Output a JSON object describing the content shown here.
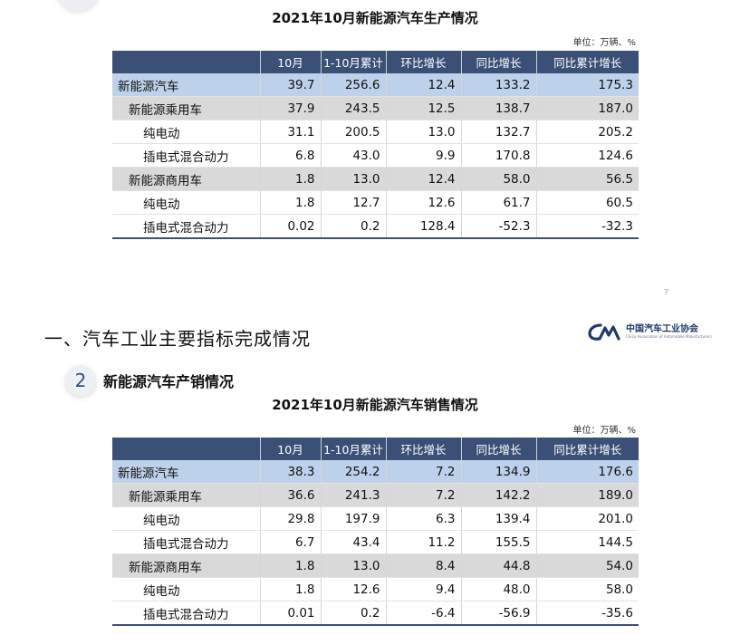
{
  "top_table": {
    "title": "2021年10月新能源汽车生产情况",
    "unit": "单位：万辆、%",
    "headers": [
      "",
      "10月",
      "1-10月累计",
      "环比增长",
      "同比增长",
      "同比累计增长"
    ],
    "rows": [
      {
        "level": 0,
        "cells": [
          "新能源汽车",
          "39.7",
          "256.6",
          "12.4",
          "133.2",
          "175.3"
        ]
      },
      {
        "level": 1,
        "cells": [
          "新能源乘用车",
          "37.9",
          "243.5",
          "12.5",
          "138.7",
          "187.0"
        ]
      },
      {
        "level": 2,
        "cells": [
          "纯电动",
          "31.1",
          "200.5",
          "13.0",
          "132.7",
          "205.2"
        ]
      },
      {
        "level": 2,
        "cells": [
          "插电式混合动力",
          "6.8",
          "43.0",
          "9.9",
          "170.8",
          "124.6"
        ]
      },
      {
        "level": 1,
        "cells": [
          "新能源商用车",
          "1.8",
          "13.0",
          "12.4",
          "58.0",
          "56.5"
        ]
      },
      {
        "level": 2,
        "cells": [
          "纯电动",
          "1.8",
          "12.7",
          "12.6",
          "61.7",
          "60.5"
        ]
      },
      {
        "level": 2,
        "cells": [
          "插电式混合动力",
          "0.02",
          "0.2",
          "128.4",
          "-52.3",
          "-32.3"
        ]
      }
    ]
  },
  "page_number": "7",
  "section_heading": "一、汽车工业主要指标完成情况",
  "logo": {
    "mark": "CM",
    "name_cn": "中国汽车工业协会",
    "name_en": "China Association of Automobile Manufacturers",
    "color": "#1f3a6d"
  },
  "subsection": {
    "number": "2",
    "title": "新能源汽车产销情况"
  },
  "bottom_table": {
    "title": "2021年10月新能源汽车销售情况",
    "unit": "单位：万辆、%",
    "headers": [
      "",
      "10月",
      "1-10月累计",
      "环比增长",
      "同比增长",
      "同比累计增长"
    ],
    "rows": [
      {
        "level": 0,
        "cells": [
          "新能源汽车",
          "38.3",
          "254.2",
          "7.2",
          "134.9",
          "176.6"
        ]
      },
      {
        "level": 1,
        "cells": [
          "新能源乘用车",
          "36.6",
          "241.3",
          "7.2",
          "142.2",
          "189.0"
        ]
      },
      {
        "level": 2,
        "cells": [
          "纯电动",
          "29.8",
          "197.9",
          "6.3",
          "139.4",
          "201.0"
        ]
      },
      {
        "level": 2,
        "cells": [
          "插电式混合动力",
          "6.7",
          "43.4",
          "11.2",
          "155.5",
          "144.5"
        ]
      },
      {
        "level": 1,
        "cells": [
          "新能源商用车",
          "1.8",
          "13.0",
          "8.4",
          "44.8",
          "54.0"
        ]
      },
      {
        "level": 2,
        "cells": [
          "纯电动",
          "1.8",
          "12.6",
          "9.4",
          "48.0",
          "58.0"
        ]
      },
      {
        "level": 2,
        "cells": [
          "插电式混合动力",
          "0.01",
          "0.2",
          "-6.4",
          "-56.9",
          "-35.6"
        ]
      }
    ]
  },
  "colors": {
    "header_bg": "#3b5077",
    "level0_bg": "#bdd2ea",
    "level1_bg": "#d9d9d9",
    "level2_bg": "#ffffff"
  }
}
